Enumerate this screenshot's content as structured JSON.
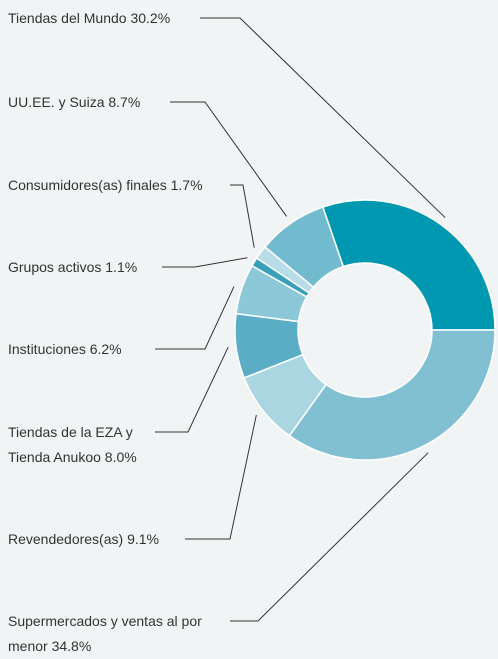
{
  "chart_data": {
    "type": "donut",
    "categories": [
      "Tiendas del Mundo",
      "UU.EE. y Suiza",
      "Consumidores(as) finales",
      "Grupos activos",
      "Instituciones",
      "Tiendas de la EZA y Tienda Anukoo",
      "Revendedores(as)",
      "Supermercados y ventas al por menor"
    ],
    "values": [
      30.2,
      8.7,
      1.7,
      1.1,
      6.2,
      8.0,
      9.1,
      34.8
    ],
    "value_labels": [
      "30.2%",
      "8.7%",
      "1.7%",
      "1.1%",
      "6.2%",
      "8.0%",
      "9.1%",
      "34.8%"
    ],
    "colors": [
      "#0097b0",
      "#72bbcf",
      "#b9dde8",
      "#3a9fba",
      "#8bc8d8",
      "#5badc5",
      "#aad6e2",
      "#80c0d2"
    ]
  }
}
